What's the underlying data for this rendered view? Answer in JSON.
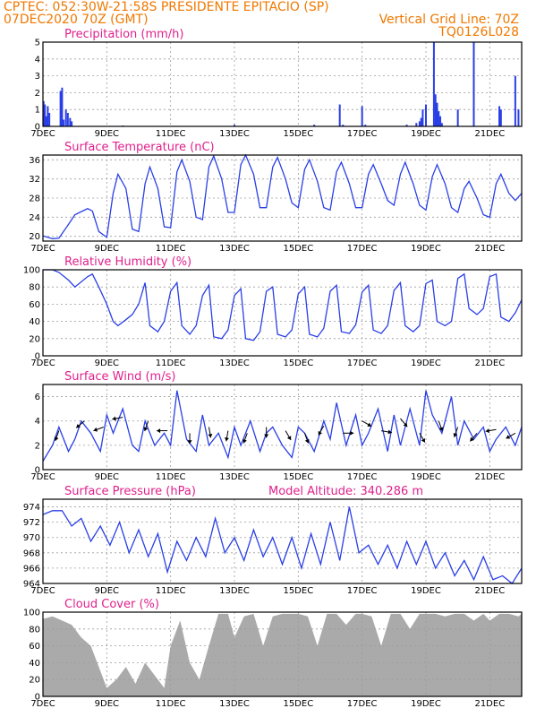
{
  "header": {
    "line1_left": "CPTEC:   052:30W-21:58S   PRESIDENTE EPITACIO (SP)",
    "line2_left": "07DEC2020 70Z (GMT)",
    "line2_right": "Vertical Grid Line: 70Z",
    "line3_right": "TQ0126L028"
  },
  "colors": {
    "header": "#f07800",
    "panel_title": "#e0208c",
    "series": "#2a3fe6",
    "cloud": "#aaaaaa"
  },
  "x_ticks": [
    "7DEC",
    "9DEC",
    "11DEC",
    "13DEC",
    "15DEC",
    "17DEC",
    "19DEC",
    "21DEC"
  ],
  "x_tick_days": [
    0,
    2,
    4,
    6,
    8,
    10,
    12,
    14
  ],
  "x_range_days": [
    0,
    15
  ],
  "panels": {
    "precip": {
      "title": "Precipitation (mm/h)"
    },
    "temp": {
      "title": "Surface Temperature (nC)"
    },
    "rh": {
      "title": "Relative Humidity (%)"
    },
    "wind": {
      "title": "Surface Wind (m/s)"
    },
    "pressure": {
      "title": "Surface Pressure (hPa)",
      "extra": "Model Altitude: 340.286 m"
    },
    "cloud": {
      "title": "Cloud Cover (%)"
    }
  },
  "chart_data": [
    {
      "type": "bar",
      "name": "precip",
      "ylabel": "Precipitation (mm/h)",
      "ylim": [
        0,
        5
      ],
      "yticks": [
        0,
        1,
        2,
        3,
        4,
        5
      ],
      "grid": true,
      "x_days": [
        0.02,
        0.06,
        0.1,
        0.15,
        0.2,
        0.55,
        0.6,
        0.65,
        0.72,
        0.78,
        0.85,
        0.9,
        2.5,
        6.0,
        8.5,
        9.3,
        9.4,
        10.0,
        10.1,
        11.4,
        11.7,
        11.8,
        11.85,
        11.9,
        12.0,
        12.25,
        12.3,
        12.35,
        12.4,
        12.45,
        12.5,
        13.0,
        13.5,
        14.3,
        14.35,
        14.8,
        14.9
      ],
      "values": [
        1.5,
        1.3,
        0.6,
        1.2,
        0.8,
        2.1,
        2.3,
        0.4,
        1.0,
        0.8,
        0.5,
        0.3,
        0.05,
        0.1,
        0.1,
        1.3,
        0.1,
        1.2,
        0.1,
        0.1,
        0.2,
        0.3,
        0.5,
        1.0,
        1.3,
        5.0,
        1.9,
        1.4,
        0.9,
        0.6,
        0.2,
        1.0,
        5.0,
        1.2,
        1.0,
        3.0,
        1.0
      ]
    },
    {
      "type": "line",
      "name": "temp",
      "ylabel": "Surface Temperature (nC)",
      "ylim": [
        19,
        37
      ],
      "yticks": [
        20,
        24,
        28,
        32,
        36
      ],
      "grid": true,
      "x_days": [
        0.0,
        0.3,
        0.5,
        0.8,
        1.0,
        1.4,
        1.55,
        1.75,
        2.0,
        2.2,
        2.35,
        2.6,
        2.8,
        3.0,
        3.2,
        3.35,
        3.6,
        3.8,
        4.0,
        4.2,
        4.35,
        4.6,
        4.8,
        5.0,
        5.2,
        5.35,
        5.6,
        5.8,
        6.0,
        6.2,
        6.35,
        6.6,
        6.8,
        7.0,
        7.2,
        7.35,
        7.6,
        7.8,
        8.0,
        8.2,
        8.35,
        8.6,
        8.8,
        9.0,
        9.2,
        9.35,
        9.6,
        9.8,
        10.0,
        10.2,
        10.35,
        10.6,
        10.8,
        11.0,
        11.2,
        11.35,
        11.6,
        11.8,
        12.0,
        12.2,
        12.35,
        12.6,
        12.8,
        13.0,
        13.2,
        13.35,
        13.6,
        13.8,
        14.0,
        14.2,
        14.35,
        14.6,
        14.8,
        15.0
      ],
      "values": [
        20.1,
        19.5,
        19.6,
        22.5,
        24.5,
        25.8,
        25.3,
        21.0,
        19.8,
        29.0,
        33.0,
        30.0,
        21.5,
        21.0,
        31.0,
        34.5,
        30.0,
        22.0,
        21.8,
        33.5,
        36.0,
        31.5,
        24.0,
        23.5,
        34.5,
        36.8,
        32.0,
        25.0,
        25.0,
        35.0,
        37.0,
        33.0,
        26.0,
        26.0,
        34.5,
        36.5,
        32.0,
        27.0,
        26.0,
        34.0,
        36.0,
        31.5,
        26.0,
        25.5,
        33.5,
        35.5,
        31.0,
        26.0,
        26.0,
        33.0,
        35.0,
        31.0,
        27.5,
        26.5,
        33.0,
        35.5,
        31.0,
        26.5,
        25.5,
        32.5,
        35.0,
        31.0,
        26.0,
        25.0,
        30.0,
        31.5,
        28.0,
        24.5,
        24.0,
        31.0,
        33.0,
        29.0,
        27.5,
        29.0
      ]
    },
    {
      "type": "line",
      "name": "rh",
      "ylabel": "Relative Humidity (%)",
      "ylim": [
        0,
        100
      ],
      "yticks": [
        0,
        20,
        40,
        60,
        80,
        100
      ],
      "grid": true,
      "x_days": [
        0.0,
        0.3,
        0.5,
        0.8,
        1.0,
        1.4,
        1.55,
        1.75,
        2.0,
        2.2,
        2.35,
        2.6,
        2.8,
        3.0,
        3.2,
        3.35,
        3.6,
        3.8,
        4.0,
        4.2,
        4.35,
        4.6,
        4.8,
        5.0,
        5.2,
        5.35,
        5.6,
        5.8,
        6.0,
        6.2,
        6.35,
        6.6,
        6.8,
        7.0,
        7.2,
        7.35,
        7.6,
        7.8,
        8.0,
        8.2,
        8.35,
        8.6,
        8.8,
        9.0,
        9.2,
        9.35,
        9.6,
        9.8,
        10.0,
        10.2,
        10.35,
        10.6,
        10.8,
        11.0,
        11.2,
        11.35,
        11.6,
        11.8,
        12.0,
        12.2,
        12.35,
        12.6,
        12.8,
        13.0,
        13.2,
        13.35,
        13.6,
        13.8,
        14.0,
        14.2,
        14.35,
        14.6,
        14.8,
        15.0
      ],
      "values": [
        100,
        100,
        97,
        88,
        80,
        92,
        95,
        80,
        60,
        40,
        35,
        42,
        48,
        60,
        85,
        35,
        28,
        40,
        75,
        85,
        35,
        25,
        35,
        70,
        82,
        22,
        20,
        30,
        70,
        78,
        20,
        18,
        28,
        75,
        80,
        25,
        22,
        30,
        72,
        80,
        25,
        22,
        32,
        75,
        82,
        28,
        26,
        36,
        74,
        82,
        30,
        26,
        35,
        76,
        85,
        35,
        28,
        35,
        84,
        88,
        40,
        35,
        40,
        90,
        95,
        55,
        48,
        55,
        92,
        95,
        45,
        40,
        50,
        65
      ]
    },
    {
      "type": "line",
      "name": "wind",
      "ylabel": "Surface Wind (m/s)",
      "ylim": [
        0,
        7
      ],
      "yticks": [
        0,
        2,
        4,
        6
      ],
      "grid": true,
      "x_days": [
        0.0,
        0.3,
        0.5,
        0.8,
        1.0,
        1.2,
        1.5,
        1.8,
        2.0,
        2.2,
        2.5,
        2.8,
        3.0,
        3.2,
        3.5,
        3.8,
        4.0,
        4.2,
        4.5,
        4.8,
        5.0,
        5.2,
        5.5,
        5.8,
        6.0,
        6.2,
        6.5,
        6.8,
        7.0,
        7.2,
        7.5,
        7.8,
        8.0,
        8.2,
        8.5,
        8.8,
        9.0,
        9.2,
        9.5,
        9.8,
        10.0,
        10.2,
        10.5,
        10.8,
        11.0,
        11.2,
        11.5,
        11.8,
        12.0,
        12.2,
        12.5,
        12.8,
        13.0,
        13.2,
        13.5,
        13.8,
        14.0,
        14.2,
        14.5,
        14.8,
        15.0
      ],
      "values": [
        0.7,
        2.0,
        3.5,
        1.5,
        2.5,
        4.0,
        3.0,
        1.5,
        4.5,
        3.0,
        5.0,
        2.0,
        1.5,
        4.0,
        2.0,
        3.0,
        2.0,
        6.5,
        2.5,
        1.5,
        4.5,
        2.0,
        3.0,
        1.0,
        3.5,
        2.0,
        4.0,
        1.5,
        3.0,
        3.5,
        2.0,
        1.0,
        3.5,
        3.0,
        1.5,
        4.0,
        2.5,
        5.5,
        2.0,
        4.5,
        2.0,
        3.0,
        5.0,
        1.5,
        4.5,
        2.0,
        5.0,
        2.0,
        6.5,
        4.5,
        3.0,
        6.0,
        2.0,
        4.0,
        2.5,
        3.5,
        1.5,
        2.5,
        3.5,
        2.0,
        3.5
      ]
    },
    {
      "type": "line",
      "name": "pressure",
      "ylabel": "Surface Pressure (hPa)",
      "ylim": [
        964,
        975
      ],
      "yticks": [
        964,
        966,
        968,
        970,
        972,
        974
      ],
      "grid": true,
      "x_days": [
        0.0,
        0.3,
        0.6,
        0.9,
        1.2,
        1.5,
        1.8,
        2.1,
        2.4,
        2.7,
        3.0,
        3.3,
        3.6,
        3.9,
        4.2,
        4.5,
        4.8,
        5.1,
        5.4,
        5.7,
        6.0,
        6.3,
        6.6,
        6.9,
        7.2,
        7.5,
        7.8,
        8.1,
        8.4,
        8.7,
        9.0,
        9.3,
        9.6,
        9.9,
        10.2,
        10.5,
        10.8,
        11.1,
        11.4,
        11.7,
        12.0,
        12.3,
        12.6,
        12.9,
        13.2,
        13.5,
        13.8,
        14.1,
        14.4,
        14.7,
        15.0
      ],
      "values": [
        973.0,
        973.5,
        973.5,
        971.5,
        972.5,
        969.5,
        971.5,
        969.0,
        972.0,
        968.0,
        971.0,
        967.5,
        970.5,
        965.5,
        969.5,
        967.0,
        970.0,
        967.5,
        972.5,
        968.0,
        970.0,
        967.0,
        971.0,
        967.5,
        970.0,
        966.5,
        970.0,
        966.0,
        970.5,
        966.5,
        972.0,
        967.0,
        974.0,
        968.0,
        969.0,
        966.5,
        969.0,
        966.0,
        969.5,
        966.5,
        969.5,
        966.0,
        968.0,
        965.0,
        967.0,
        964.5,
        967.5,
        964.5,
        965.0,
        964.0,
        966.0
      ]
    },
    {
      "type": "area",
      "name": "cloud",
      "ylabel": "Cloud Cover (%)",
      "ylim": [
        0,
        100
      ],
      "yticks": [
        0,
        20,
        40,
        60,
        80,
        100
      ],
      "grid": true,
      "x_days": [
        0.0,
        0.3,
        0.6,
        0.9,
        1.2,
        1.5,
        1.8,
        2.0,
        2.3,
        2.6,
        2.9,
        3.2,
        3.5,
        3.8,
        4.0,
        4.3,
        4.6,
        4.9,
        5.2,
        5.5,
        5.8,
        6.0,
        6.3,
        6.6,
        6.9,
        7.2,
        7.5,
        7.8,
        8.0,
        8.3,
        8.6,
        8.9,
        9.2,
        9.5,
        9.8,
        10.0,
        10.3,
        10.6,
        10.9,
        11.2,
        11.5,
        11.8,
        12.0,
        12.3,
        12.6,
        12.9,
        13.2,
        13.5,
        13.8,
        14.0,
        14.3,
        14.6,
        14.9,
        15.0
      ],
      "values": [
        92,
        95,
        90,
        85,
        70,
        60,
        30,
        10,
        20,
        35,
        15,
        40,
        25,
        10,
        60,
        90,
        40,
        20,
        60,
        98,
        98,
        70,
        95,
        98,
        60,
        95,
        98,
        98,
        98,
        95,
        60,
        98,
        98,
        85,
        98,
        98,
        95,
        60,
        98,
        98,
        80,
        98,
        98,
        98,
        95,
        98,
        98,
        90,
        98,
        90,
        98,
        98,
        95,
        98
      ]
    }
  ],
  "wind_arrows_data": {
    "x_days": [
      0.5,
      1.3,
      1.9,
      2.5,
      3.3,
      3.9,
      4.6,
      5.2,
      5.8,
      6.4,
      7.0,
      7.6,
      8.2,
      8.8,
      9.4,
      10.0,
      10.6,
      11.2,
      11.8,
      12.4,
      13.0,
      13.6,
      14.2,
      14.8
    ],
    "y_speed": [
      3.2,
      4.0,
      3.5,
      4.3,
      4.0,
      3.2,
      3.0,
      3.5,
      3.2,
      3.0,
      3.5,
      3.2,
      3.0,
      3.6,
      3.0,
      4.0,
      3.2,
      4.2,
      3.0,
      4.0,
      3.5,
      3.0,
      3.3,
      3.0
    ],
    "dir_deg": [
      200,
      230,
      250,
      260,
      200,
      270,
      180,
      170,
      190,
      200,
      180,
      150,
      160,
      210,
      90,
      120,
      100,
      140,
      150,
      160,
      200,
      220,
      260,
      240
    ]
  }
}
